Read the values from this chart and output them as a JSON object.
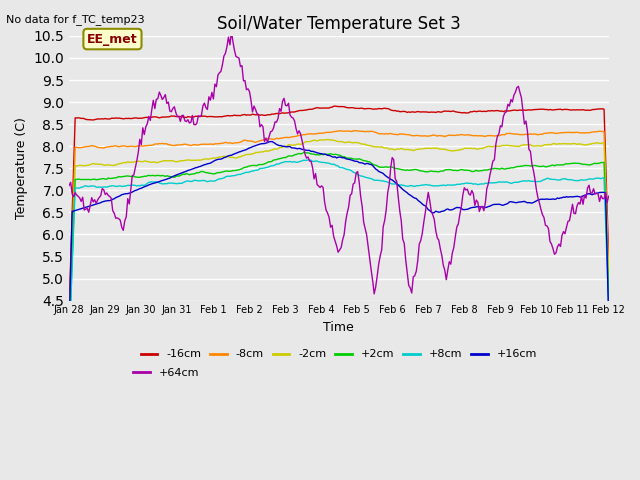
{
  "title": "Soil/Water Temperature Set 3",
  "subtitle": "No data for f_TC_temp23",
  "xlabel": "Time",
  "ylabel": "Temperature (C)",
  "ylim": [
    4.5,
    10.5
  ],
  "yticks": [
    4.5,
    5.0,
    5.5,
    6.0,
    6.5,
    7.0,
    7.5,
    8.0,
    8.5,
    9.0,
    9.5,
    10.0,
    10.5
  ],
  "annotation_label": "EE_met",
  "colors": {
    "-16cm": "#cc0000",
    "-8cm": "#ff8800",
    "-2cm": "#cccc00",
    "+2cm": "#00cc00",
    "+8cm": "#00cccc",
    "+16cm": "#0000cc",
    "+64cm": "#aa00aa"
  },
  "background_color": "#e8e8e8",
  "plot_background": "#e8e8e8",
  "grid_color": "#ffffff",
  "tick_labels": [
    "Jan 28",
    "Jan 29",
    "Jan 30",
    "Jan 31",
    "Feb 1",
    "Feb 2",
    "Feb 3",
    "Feb 4",
    "Feb 5",
    "Feb 6",
    "Feb 7",
    "Feb 8",
    "Feb 9",
    "Feb 10",
    "Feb 11",
    "Feb 12"
  ],
  "key_t_p64": [
    0,
    0.5,
    1.0,
    1.5,
    2.0,
    2.5,
    3.0,
    3.5,
    4.0,
    4.5,
    5.0,
    5.5,
    6.0,
    6.5,
    7.0,
    7.5,
    8.0,
    8.5,
    9.0,
    9.5,
    10.0,
    10.5,
    11.0,
    11.5,
    12.0,
    12.5,
    13.0,
    13.5,
    14.0,
    14.5,
    15.0
  ],
  "key_v_p64": [
    7.1,
    6.6,
    7.0,
    6.1,
    8.2,
    9.2,
    8.7,
    8.5,
    9.2,
    10.5,
    9.2,
    8.1,
    9.1,
    8.0,
    7.0,
    5.5,
    7.5,
    4.6,
    7.8,
    4.6,
    6.9,
    5.0,
    7.1,
    6.5,
    8.5,
    9.4,
    7.0,
    5.5,
    6.5,
    7.0,
    6.8
  ]
}
